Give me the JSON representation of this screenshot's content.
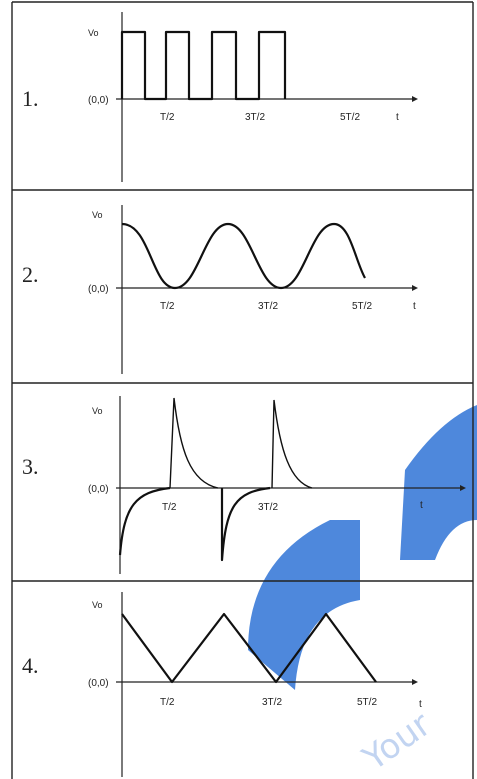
{
  "panels": [
    {
      "number": "1.",
      "y_label": "Vo",
      "origin": "(0,0)",
      "ticks": [
        "T/2",
        "3T/2",
        "5T/2"
      ],
      "t_label": "t",
      "wave_type": "square-pulse"
    },
    {
      "number": "2.",
      "y_label": "Vo",
      "origin": "(0,0)",
      "ticks": [
        "T/2",
        "3T/2",
        "5T/2"
      ],
      "t_label": "t",
      "wave_type": "sinusoid"
    },
    {
      "number": "3.",
      "y_label": "Vo",
      "origin": "(0,0)",
      "ticks": [
        "T/2",
        "3T/2"
      ],
      "t_label": "t",
      "wave_type": "exponential-spikes"
    },
    {
      "number": "4.",
      "y_label": "Vo",
      "origin": "(0,0)",
      "ticks": [
        "T/2",
        "3T/2",
        "5T/2"
      ],
      "t_label": "t",
      "wave_type": "triangle"
    }
  ],
  "watermark_color": "#2f73d6",
  "watermark_text": "Your"
}
